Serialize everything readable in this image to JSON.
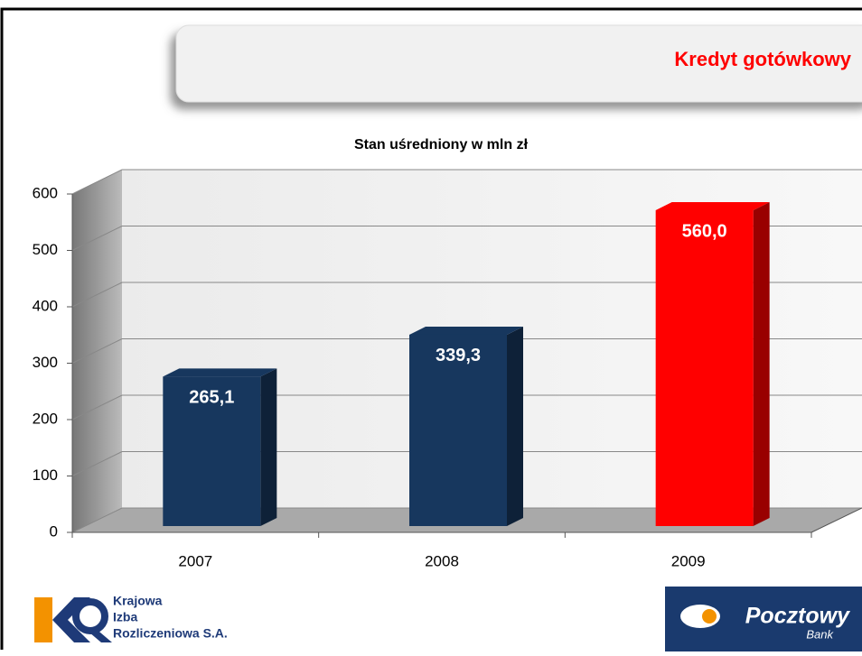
{
  "header": {
    "title": "Kredyt gotówkowy"
  },
  "chart_data": {
    "type": "bar",
    "title": "Stan uśredniony w mln zł",
    "categories": [
      "2007",
      "2008",
      "2009"
    ],
    "values": [
      265.1,
      339.3,
      560.0
    ],
    "value_labels": [
      "265,1",
      "339,3",
      "560,0"
    ],
    "colors": [
      "#17375e",
      "#17375e",
      "#ff0000"
    ],
    "ylim": [
      0,
      600
    ],
    "yticks": [
      0,
      100,
      200,
      300,
      400,
      500,
      600
    ],
    "grid": true
  },
  "logos": {
    "kir": [
      "Krajowa",
      "Izba",
      "Rozliczeniowa S.A."
    ],
    "bank": {
      "name": "Pocztowy",
      "sub": "Bank"
    }
  }
}
